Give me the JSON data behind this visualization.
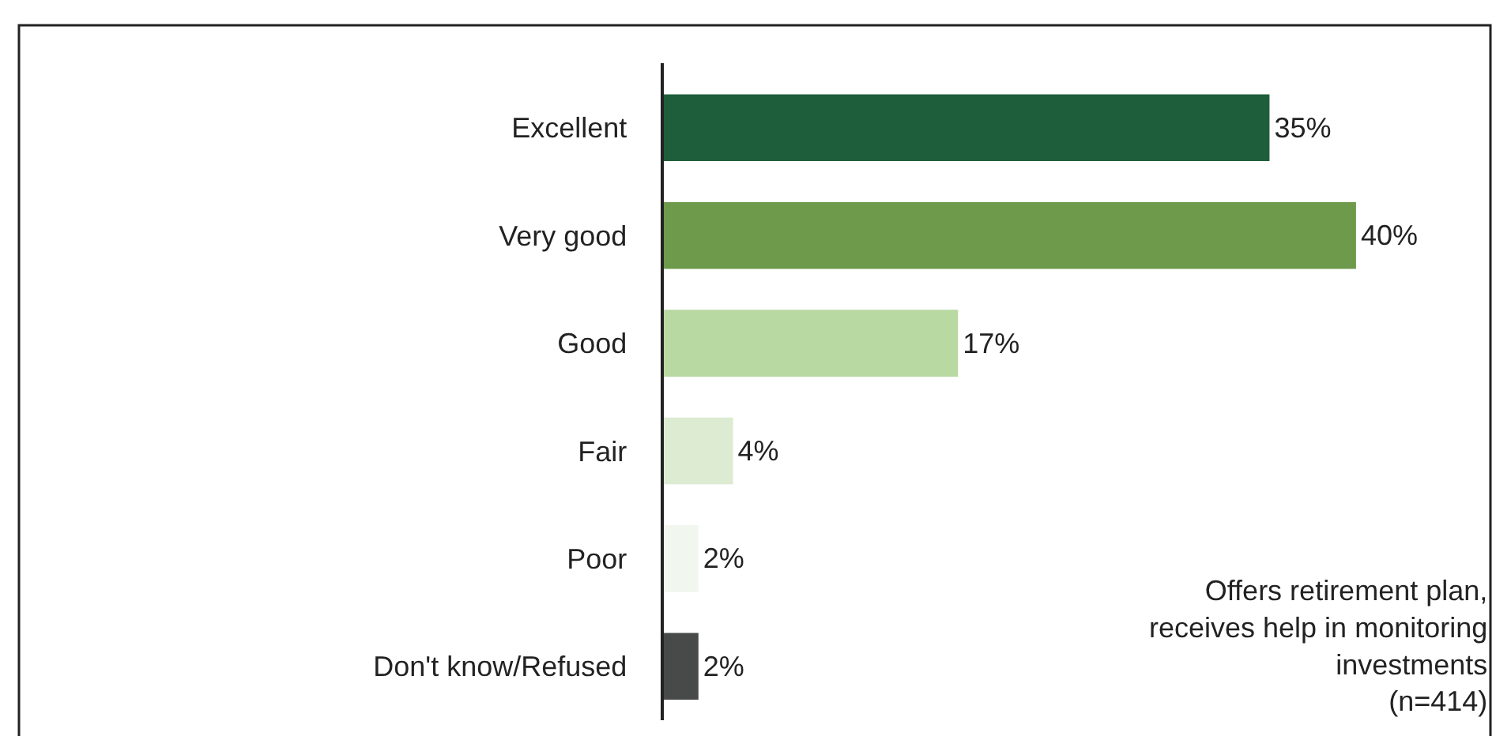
{
  "chart_data": {
    "type": "bar",
    "orientation": "horizontal",
    "categories": [
      "Excellent",
      "Very good",
      "Good",
      "Fair",
      "Poor",
      "Don't know/Refused"
    ],
    "values": [
      35,
      40,
      17,
      4,
      2,
      2
    ],
    "colors": [
      "#1f5e3b",
      "#6e9a4b",
      "#b9d9a2",
      "#dcebd1",
      "#f1f6ef",
      "#474a48"
    ],
    "value_labels": [
      "35%",
      "40%",
      "17%",
      "4%",
      "2%",
      "2%"
    ],
    "tick_labels": "y",
    "annotations": [
      "Offers retirement plan,\nreceives help in monitoring\ninvestments\n(n=414)"
    ]
  }
}
